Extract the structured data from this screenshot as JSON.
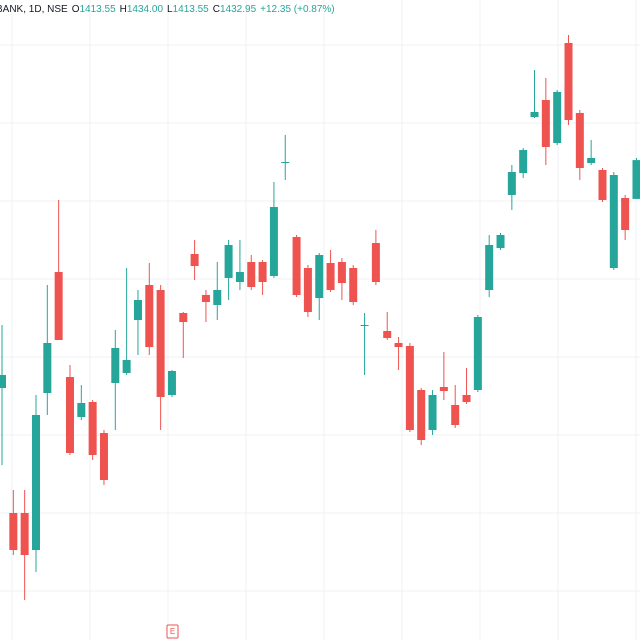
{
  "header": {
    "symbol": "BANK, 1D, NSE",
    "fields": [
      {
        "key": "O",
        "text": "1413.55"
      },
      {
        "key": "H",
        "text": "1434.00"
      },
      {
        "key": "L",
        "text": "1413.55"
      },
      {
        "key": "C",
        "text": "1432.95"
      }
    ],
    "change": "+12.35 (+0.87%)"
  },
  "event_marker": "E",
  "chart_data": {
    "type": "candlestick",
    "categories": [
      null,
      null,
      null,
      null,
      null,
      null,
      null,
      null,
      null,
      null,
      null,
      null,
      null,
      null,
      null,
      null,
      null,
      null,
      null,
      null,
      null,
      null,
      null,
      null,
      null,
      null,
      null,
      null,
      null,
      null,
      null,
      null,
      null,
      null,
      null,
      null,
      null,
      null,
      null,
      null,
      null,
      null,
      null,
      null,
      null,
      null,
      null,
      null,
      null,
      null,
      null,
      null,
      null,
      null,
      null,
      null,
      null
    ],
    "open": [
      1319,
      1256.5,
      1256.5,
      1238,
      1316.5,
      1377,
      1324.5,
      1304.5,
      1312,
      1296.5,
      1321.5,
      1326.5,
      1353,
      1370.5,
      1368,
      1315.5,
      1356.5,
      1386,
      1365.5,
      1360.5,
      1374,
      1372,
      1382,
      1382,
      1375,
      1431.5,
      1394.5,
      1379,
      1364,
      1381.5,
      1382,
      1379,
      1350,
      1391.5,
      1347.5,
      1341.5,
      1340,
      1318,
      1298,
      1319.5,
      1310.5,
      1315.5,
      1318,
      1368,
      1389,
      1415.5,
      1426.5,
      1454.5,
      1463,
      1441.5,
      1491.5,
      1456.5,
      1431.5,
      1428,
      1379,
      1414,
      1413.55
    ],
    "high": [
      1350.5,
      1268,
      1268,
      1315.5,
      1370.5,
      1413,
      1330.5,
      1320.5,
      1313,
      1298,
      1348,
      1379,
      1368,
      1381.5,
      1370.5,
      1328,
      1357,
      1393,
      1368,
      1382,
      1393,
      1393,
      1385.5,
      1383,
      1422,
      1445.5,
      1395.5,
      1380.5,
      1386.5,
      1388,
      1384,
      1380.5,
      1356.5,
      1398,
      1357,
      1344.5,
      1341.5,
      1319,
      1318,
      1337,
      1320.5,
      1329,
      1355.5,
      1395.5,
      1396.5,
      1430.5,
      1439,
      1478,
      1474,
      1468,
      1495.5,
      1458,
      1443,
      1429,
      1427,
      1415.5,
      1434
    ],
    "low": [
      1280.5,
      1235.5,
      1213,
      1227,
      1305.5,
      1343,
      1285.5,
      1303,
      1283,
      1270.5,
      1298,
      1325.5,
      1335.5,
      1335.5,
      1298,
      1314.5,
      1334,
      1373,
      1352,
      1353,
      1363,
      1368,
      1368,
      1365.5,
      1374,
      1423,
      1364.5,
      1354.5,
      1353,
      1367,
      1363,
      1360.5,
      1325.5,
      1370.5,
      1343,
      1328,
      1297,
      1290.5,
      1295.5,
      1313,
      1299,
      1311,
      1317,
      1364.5,
      1388,
      1408,
      1424,
      1454,
      1430.5,
      1440.5,
      1450.5,
      1423,
      1430.5,
      1412,
      1378,
      1393,
      1413.55
    ],
    "close": [
      1325.5,
      1238,
      1235.5,
      1305.5,
      1341.5,
      1343,
      1286.5,
      1311.5,
      1285.5,
      1273,
      1339,
      1333,
      1363,
      1339.5,
      1314.5,
      1327.5,
      1352,
      1380,
      1362,
      1368,
      1390.5,
      1377,
      1369.5,
      1372,
      1409.5,
      1432,
      1365.5,
      1357,
      1385.5,
      1368,
      1371.5,
      1362,
      1350.5,
      1372,
      1344,
      1339.5,
      1298,
      1293,
      1315.5,
      1317.5,
      1300.5,
      1312,
      1354.5,
      1390.5,
      1395.5,
      1427,
      1438,
      1457,
      1439.5,
      1467,
      1453,
      1429,
      1434,
      1413,
      1425.5,
      1398,
      1432.95
    ],
    "up_color": "#26a69a",
    "down_color": "#ef5350",
    "ylim": [
      1193,
      1513
    ],
    "grid": true
  }
}
